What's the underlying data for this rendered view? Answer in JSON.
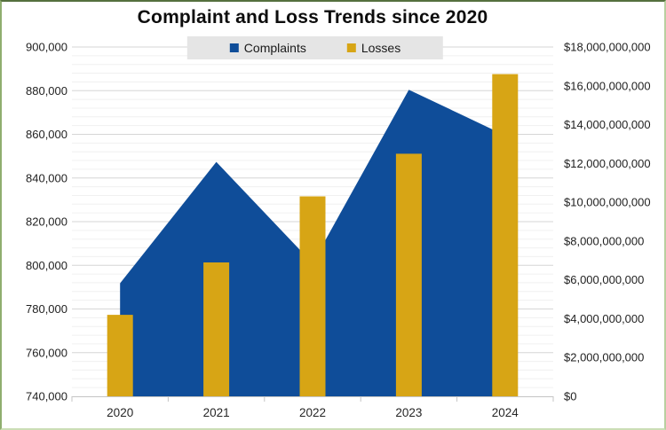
{
  "chart_data": {
    "type": "combo",
    "title": "Complaint and Loss Trends since 2020",
    "categories": [
      "2020",
      "2021",
      "2022",
      "2023",
      "2024"
    ],
    "series": [
      {
        "name": "Complaints",
        "chart": "area",
        "axis": "left",
        "color": "#0f4d99",
        "values": [
          791790,
          847376,
          800944,
          880418,
          859532
        ]
      },
      {
        "name": "Losses",
        "chart": "bar",
        "axis": "right",
        "color": "#d7a515",
        "values": [
          4200000000,
          6900000000,
          10300000000,
          12500000000,
          16600000000
        ]
      }
    ],
    "axis_left": {
      "min": 740000,
      "max": 900000,
      "step": 20000,
      "tick_labels": [
        "900,000",
        "880,000",
        "860,000",
        "840,000",
        "820,000",
        "800,000",
        "780,000",
        "760,000",
        "740,000"
      ]
    },
    "axis_right": {
      "min": 0,
      "max": 18000000000,
      "step": 2000000000,
      "tick_labels": [
        "$18,000,000,000",
        "$16,000,000,000",
        "$14,000,000,000",
        "$12,000,000,000",
        "$10,000,000,000",
        "$8,000,000,000",
        "$6,000,000,000",
        "$4,000,000,000",
        "$2,000,000,000",
        "$0"
      ]
    },
    "legend": {
      "position": "top",
      "items": [
        {
          "label": "Complaints",
          "color": "#0f4d99"
        },
        {
          "label": "Losses",
          "color": "#d7a515"
        }
      ]
    },
    "grid": {
      "major": true,
      "minor": true
    }
  }
}
